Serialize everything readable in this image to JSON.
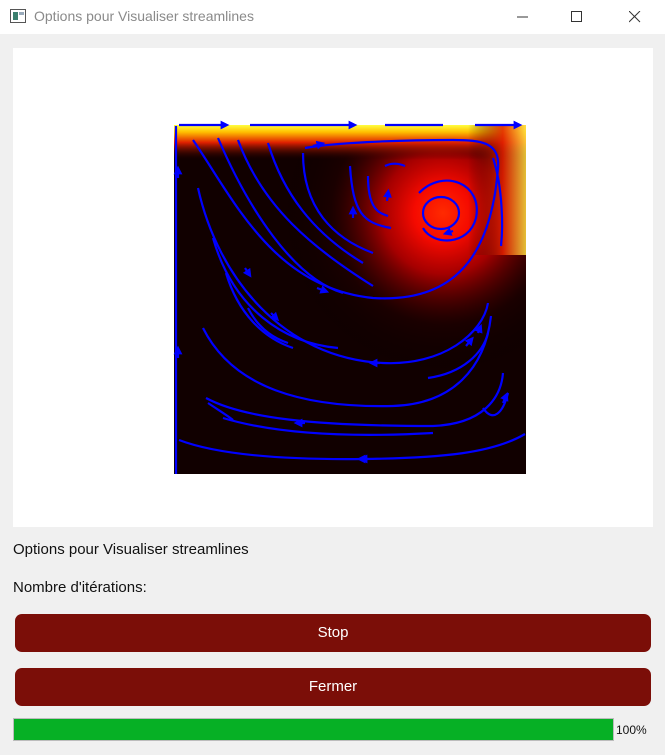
{
  "window": {
    "title": "Options pour Visualiser streamlines",
    "icon": "app-window-icon",
    "controls": [
      "minimize-icon",
      "maximize-icon",
      "close-icon"
    ]
  },
  "plot": {
    "description_colormap": "hot",
    "streamline_color": "#0000ff"
  },
  "labels": {
    "options_title": "Options pour Visualiser streamlines",
    "iterations": "Nombre d'itérations:"
  },
  "buttons": {
    "stop": "Stop",
    "fermer": "Fermer"
  },
  "progress": {
    "value_percent": 100,
    "text": "100%"
  },
  "colors": {
    "button_bg": "#7b0e08",
    "progress_fill": "#06b025"
  }
}
